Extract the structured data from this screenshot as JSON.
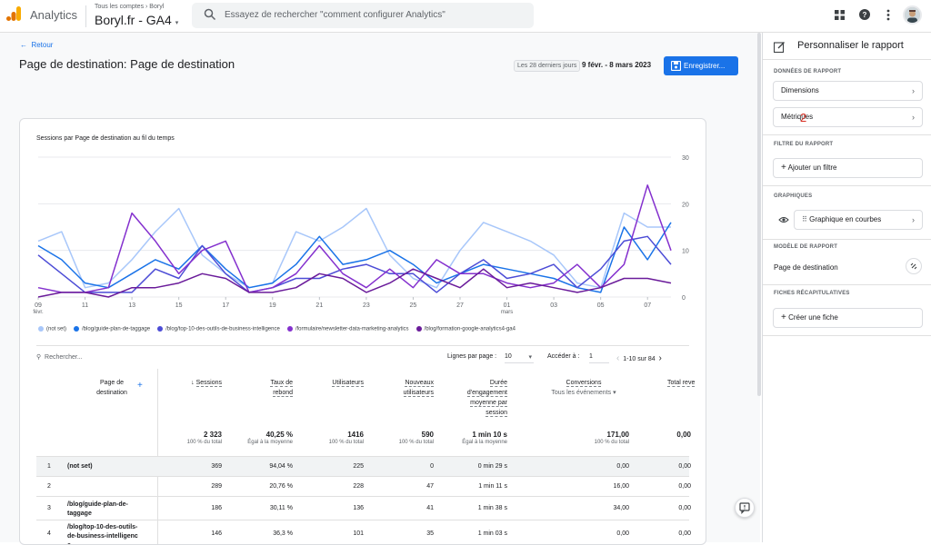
{
  "app": {
    "name": "Analytics",
    "breadcrumb": "Tous les comptes › Boryl",
    "property": "Boryl.fr - GA4"
  },
  "search": {
    "placeholder": "Essayez de rechercher \"comment configurer Analytics\""
  },
  "page": {
    "back_label": "Retour",
    "title": "Page de destination: Page de destination",
    "date_chip": "Les 28 derniers jours",
    "date_range": "9 févr. - 8 mars 2023",
    "save_label": "Enregistrer..."
  },
  "chart_data": {
    "type": "line",
    "title": "Sessions par Page de destination au fil du temps",
    "x": [
      "09 févr.",
      "10",
      "11",
      "12",
      "13",
      "14",
      "15",
      "16",
      "17",
      "18",
      "19",
      "20",
      "21",
      "22",
      "23",
      "24",
      "25",
      "26",
      "27",
      "28",
      "01 mars",
      "02",
      "03",
      "04",
      "05",
      "06",
      "07",
      "08"
    ],
    "x_tick_labels": [
      "09",
      "11",
      "13",
      "15",
      "17",
      "19",
      "21",
      "23",
      "25",
      "27",
      "01",
      "03",
      "05",
      "07"
    ],
    "x_tick_sublabels": {
      "09": "févr.",
      "01": "mars"
    },
    "ylim": [
      0,
      30
    ],
    "y_ticks": [
      0,
      10,
      20,
      30
    ],
    "series": [
      {
        "name": "(not set)",
        "color": "#a8c7fa",
        "values": [
          12,
          14,
          2,
          3,
          8,
          14,
          19,
          9,
          5,
          2,
          3,
          14,
          12,
          15,
          19,
          9,
          4,
          2,
          10,
          16,
          14,
          12,
          9,
          3,
          2,
          18,
          15,
          15
        ]
      },
      {
        "name": "/blog/guide-plan-de-taggage",
        "color": "#1a73e8",
        "values": [
          11,
          8,
          3,
          2,
          5,
          8,
          6,
          11,
          6,
          2,
          3,
          7,
          13,
          7,
          8,
          10,
          7,
          3,
          5,
          7,
          6,
          5,
          4,
          2,
          1,
          15,
          8,
          16
        ]
      },
      {
        "name": "/blog/top-10-des-outils-de-business-intelligence",
        "color": "#4c4cd6",
        "values": [
          9,
          5,
          1,
          1,
          1,
          6,
          4,
          11,
          5,
          1,
          2,
          4,
          4,
          6,
          7,
          5,
          5,
          1,
          5,
          8,
          4,
          5,
          7,
          2,
          6,
          12,
          13,
          7
        ]
      },
      {
        "name": "/formulaire/newsletter-data-marketing-analytics",
        "color": "#8430ce",
        "values": [
          2,
          1,
          1,
          2,
          18,
          12,
          5,
          10,
          12,
          1,
          2,
          5,
          11,
          5,
          2,
          6,
          2,
          8,
          5,
          5,
          3,
          2,
          3,
          7,
          2,
          7,
          24,
          10
        ]
      },
      {
        "name": "/blog/formation-google-analytics4-ga4",
        "color": "#6a1b9a",
        "values": [
          0,
          1,
          1,
          0,
          2,
          2,
          3,
          5,
          4,
          1,
          1,
          2,
          5,
          4,
          1,
          3,
          6,
          4,
          2,
          6,
          2,
          3,
          2,
          1,
          2,
          4,
          4,
          3
        ]
      }
    ]
  },
  "table": {
    "search_placeholder": "Rechercher...",
    "rows_per_page_label": "Lignes par page :",
    "rows_per_page": "10",
    "goto_label": "Accéder à :",
    "goto_value": "1",
    "pager": "1-10 sur 84",
    "dim_header": "Page de destination",
    "columns": [
      {
        "label": "Sessions",
        "total": "2 323",
        "sub": "100 % du total"
      },
      {
        "label": "Taux de rebond",
        "total": "40,25 %",
        "sub": "Égal à la moyenne"
      },
      {
        "label": "Utilisateurs",
        "total": "1416",
        "sub": "100 % du total"
      },
      {
        "label": "Nouveaux utilisateurs",
        "total": "590",
        "sub": "100 % du total"
      },
      {
        "label": "Durée d'engagement moyenne par session",
        "total": "1 min 10 s",
        "sub": "Égal à la moyenne"
      },
      {
        "label": "Conversions",
        "sublabel": "Tous les événements",
        "total": "171,00",
        "sub": "100 % du total"
      },
      {
        "label": "Total reve",
        "total": "0,00",
        "sub": ""
      }
    ],
    "rows": [
      {
        "n": "1",
        "page": "(not set)",
        "cells": [
          "369",
          "94,04 %",
          "225",
          "0",
          "0 min 29 s",
          "0,00",
          "0,00"
        ]
      },
      {
        "n": "2",
        "page": "",
        "cells": [
          "289",
          "20,76 %",
          "228",
          "47",
          "1 min 11 s",
          "16,00",
          "0,00"
        ]
      },
      {
        "n": "3",
        "page": "/blog/guide-plan-de-taggage",
        "cells": [
          "186",
          "30,11 %",
          "136",
          "41",
          "1 min 38 s",
          "34,00",
          "0,00"
        ]
      },
      {
        "n": "4",
        "page": "/blog/top-10-des-outils-de-business-intelligence",
        "cells": [
          "146",
          "36,3 %",
          "101",
          "35",
          "1 min 03 s",
          "0,00",
          "0,00"
        ]
      }
    ]
  },
  "sidebar": {
    "title": "Personnaliser le rapport",
    "sections": {
      "data": "DONNÉES DE RAPPORT",
      "filter": "FILTRE DU RAPPORT",
      "charts": "GRAPHIQUES",
      "model": "MODÈLE DE RAPPORT",
      "cards": "FICHES RÉCAPITULATIVES"
    },
    "dimensions": "Dimensions",
    "metrics": "Métriques",
    "metrics_badge": "2",
    "add_filter": "Ajouter un filtre",
    "chart_type": "Graphique en courbes",
    "model_name": "Page de destination",
    "create_card": "Créer une fiche"
  }
}
